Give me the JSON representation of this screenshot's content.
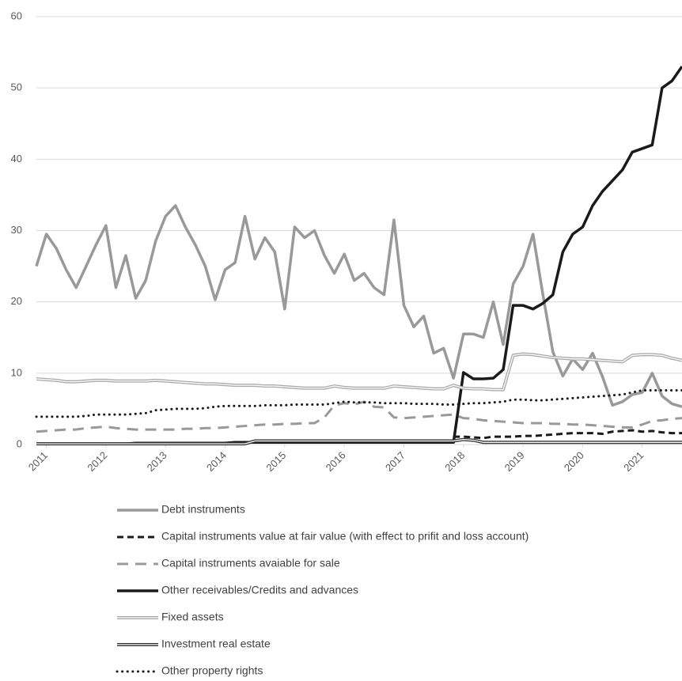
{
  "chart_data": {
    "type": "line",
    "x": [
      2010.833,
      2011,
      2011.167,
      2011.333,
      2011.5,
      2011.667,
      2011.833,
      2012,
      2012.167,
      2012.333,
      2012.5,
      2012.667,
      2012.833,
      2013,
      2013.167,
      2013.333,
      2013.5,
      2013.667,
      2013.833,
      2014,
      2014.167,
      2014.333,
      2014.5,
      2014.667,
      2014.833,
      2015,
      2015.167,
      2015.333,
      2015.5,
      2015.667,
      2015.833,
      2016,
      2016.167,
      2016.333,
      2016.5,
      2016.667,
      2016.833,
      2017,
      2017.167,
      2017.333,
      2017.5,
      2017.667,
      2017.833,
      2018,
      2018.167,
      2018.333,
      2018.5,
      2018.667,
      2018.833,
      2019,
      2019.167,
      2019.333,
      2019.5,
      2019.667,
      2019.833,
      2020,
      2020.167,
      2020.333,
      2020.5,
      2020.667,
      2020.833,
      2021,
      2021.167,
      2021.333,
      2021.5,
      2021.667
    ],
    "xlim": [
      2010.833,
      2021.667
    ],
    "xticks": [
      2011,
      2012,
      2013,
      2014,
      2015,
      2016,
      2017,
      2018,
      2019,
      2020,
      2021
    ],
    "ylim": [
      0,
      60
    ],
    "yticks": [
      0,
      10,
      20,
      30,
      40,
      50,
      60
    ],
    "grid": true,
    "legend": "bottom",
    "series": [
      {
        "name": "Debt instruments",
        "color": "#999999",
        "line_style": "solid",
        "values": [
          25,
          29.5,
          27.5,
          24.5,
          22,
          25,
          28,
          30.7,
          22,
          26.5,
          20.5,
          23,
          28.5,
          32,
          33.5,
          30.5,
          28,
          25,
          20.3,
          24.5,
          25.5,
          32,
          26,
          29,
          27,
          19,
          30.5,
          29,
          30,
          26.5,
          24,
          26.7,
          23,
          24,
          22,
          21,
          31.5,
          19.5,
          16.5,
          18,
          12.8,
          13.5,
          9.3,
          15.5,
          15.5,
          15,
          20,
          14,
          22.5,
          25,
          29.5,
          21,
          13,
          9.6,
          12,
          10.5,
          12.8,
          9.5,
          5.5,
          6,
          7,
          7.3,
          10,
          6.8,
          5.7,
          5.3
        ]
      },
      {
        "name": "Capital instruments value at fair value (with effect to prifit and loss account)",
        "color": "#1a1a1a",
        "line_style": "dashed",
        "values": [
          null,
          null,
          null,
          null,
          null,
          null,
          null,
          null,
          null,
          null,
          null,
          null,
          null,
          null,
          null,
          null,
          null,
          null,
          null,
          null,
          null,
          null,
          null,
          null,
          null,
          null,
          null,
          null,
          null,
          null,
          null,
          null,
          null,
          null,
          null,
          null,
          null,
          null,
          null,
          null,
          null,
          null,
          1.1,
          1.1,
          1.0,
          0.9,
          1.1,
          1.1,
          1.1,
          1.2,
          1.2,
          1.3,
          1.4,
          1.5,
          1.6,
          1.6,
          1.6,
          1.5,
          1.8,
          1.9,
          2.0,
          1.8,
          1.9,
          1.7,
          1.6,
          1.6
        ]
      },
      {
        "name": "Capital instruments avaiable for sale",
        "color": "#999999",
        "line_style": "long-dashed",
        "values": [
          1.8,
          1.9,
          2.0,
          2.1,
          2.1,
          2.3,
          2.4,
          2.5,
          2.3,
          2.2,
          2.1,
          2.1,
          2.1,
          2.1,
          2.1,
          2.2,
          2.2,
          2.3,
          2.3,
          2.4,
          2.5,
          2.6,
          2.7,
          2.8,
          2.8,
          2.9,
          2.9,
          3.0,
          3.0,
          3.8,
          5.5,
          5.8,
          5.6,
          6.0,
          5.3,
          5.2,
          3.8,
          3.7,
          3.8,
          3.9,
          4.0,
          4.1,
          4.2,
          3.7,
          3.6,
          3.4,
          3.3,
          3.2,
          3.1,
          3.0,
          3.0,
          3.0,
          2.9,
          2.9,
          2.8,
          2.8,
          2.7,
          2.6,
          2.5,
          2.4,
          2.4,
          2.8,
          3.3,
          3.4,
          3.6,
          3.7
        ]
      },
      {
        "name": "Other receivables/Credits and advances",
        "color": "#1a1a1a",
        "line_style": "solid",
        "values": [
          0.1,
          0.1,
          0.1,
          0.1,
          0.1,
          0.1,
          0.1,
          0.1,
          0.1,
          0.1,
          0.2,
          0.2,
          0.2,
          0.2,
          0.2,
          0.2,
          0.2,
          0.2,
          0.2,
          0.2,
          0.3,
          0.3,
          0.3,
          0.3,
          0.3,
          0.3,
          0.3,
          0.3,
          0.3,
          0.3,
          0.3,
          0.3,
          0.3,
          0.3,
          0.3,
          0.3,
          0.3,
          0.3,
          0.3,
          0.3,
          0.3,
          0.3,
          0.3,
          10.1,
          9.2,
          9.2,
          9.3,
          10.5,
          19.5,
          19.5,
          19,
          19.8,
          21,
          27,
          29.5,
          30.5,
          33.5,
          35.5,
          37,
          38.5,
          41,
          41.5,
          42,
          50,
          51,
          53
        ]
      },
      {
        "name": "Fixed assets",
        "color": "#aaaaaa",
        "line_style": "double",
        "values": [
          9.2,
          9.1,
          9.0,
          8.8,
          8.8,
          8.9,
          9.0,
          9.0,
          8.9,
          8.9,
          8.9,
          8.9,
          9.0,
          8.9,
          8.8,
          8.7,
          8.6,
          8.5,
          8.5,
          8.4,
          8.3,
          8.3,
          8.3,
          8.2,
          8.2,
          8.1,
          8.0,
          7.9,
          7.9,
          7.9,
          8.2,
          8.0,
          7.9,
          7.9,
          7.9,
          7.9,
          8.2,
          8.1,
          8.0,
          7.9,
          7.8,
          7.8,
          8.3,
          7.9,
          7.8,
          7.8,
          7.7,
          7.7,
          12.5,
          12.7,
          12.6,
          12.4,
          12.2,
          12.1,
          12.0,
          12.0,
          11.9,
          11.8,
          11.7,
          11.6,
          12.5,
          12.6,
          12.6,
          12.5,
          12.1,
          11.8
        ]
      },
      {
        "name": "Investment real estate",
        "color": "#333333",
        "line_style": "double",
        "values": [
          0.1,
          0.1,
          0.1,
          0.1,
          0.1,
          0.1,
          0.1,
          0.1,
          0.1,
          0.1,
          0.1,
          0.1,
          0.1,
          0.1,
          0.1,
          0.1,
          0.1,
          0.1,
          0.1,
          0.1,
          0.1,
          0.1,
          0.5,
          0.5,
          0.5,
          0.5,
          0.5,
          0.5,
          0.5,
          0.5,
          0.5,
          0.5,
          0.5,
          0.5,
          0.5,
          0.5,
          0.5,
          0.5,
          0.5,
          0.5,
          0.5,
          0.5,
          0.5,
          0.7,
          0.6,
          0.3,
          0.3,
          0.3,
          0.3,
          0.3,
          0.3,
          0.3,
          0.3,
          0.3,
          0.3,
          0.3,
          0.3,
          0.3,
          0.3,
          0.3,
          0.3,
          0.3,
          0.3,
          0.3,
          0.3,
          0.3
        ]
      },
      {
        "name": "Other property rights",
        "color": "#1a1a1a",
        "line_style": "dotted",
        "values": [
          3.9,
          3.9,
          3.9,
          3.9,
          3.9,
          4.0,
          4.2,
          4.2,
          4.2,
          4.2,
          4.3,
          4.4,
          4.8,
          4.9,
          5.0,
          5.0,
          5.0,
          5.1,
          5.3,
          5.4,
          5.4,
          5.4,
          5.4,
          5.5,
          5.5,
          5.5,
          5.6,
          5.6,
          5.6,
          5.6,
          5.8,
          6.0,
          5.9,
          5.9,
          5.9,
          5.8,
          5.8,
          5.8,
          5.7,
          5.7,
          5.7,
          5.6,
          5.6,
          5.7,
          5.8,
          5.8,
          5.9,
          6.0,
          6.3,
          6.3,
          6.2,
          6.2,
          6.3,
          6.4,
          6.5,
          6.6,
          6.7,
          6.8,
          6.9,
          7.0,
          7.3,
          7.6,
          7.6,
          7.6,
          7.6,
          7.6
        ]
      }
    ]
  }
}
